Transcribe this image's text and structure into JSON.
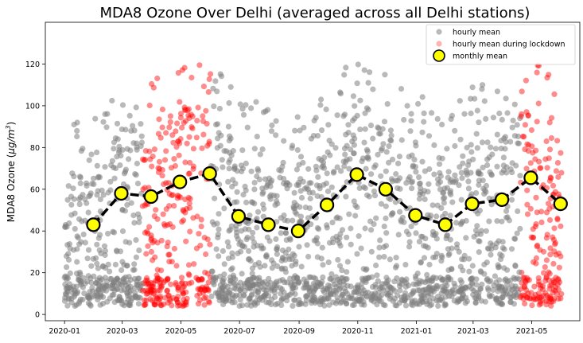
{
  "chart_data": {
    "type": "scatter",
    "title": "MDA8 Ozone Over Delhi (averaged across all Delhi stations)",
    "xlabel": "",
    "ylabel": "MDA8 Ozone (μg/m³)",
    "ylabel_main": "MDA8 Ozone (",
    "ylabel_unit_mu": "μg/m",
    "ylabel_unit_exp": "3",
    "ylabel_close": ")",
    "x_range": [
      "2019-12-12",
      "2021-06-20"
    ],
    "ylim": [
      -3,
      140
    ],
    "x_ticks": [
      "2020-01",
      "2020-03",
      "2020-05",
      "2020-07",
      "2020-09",
      "2020-11",
      "2021-01",
      "2021-03",
      "2021-05"
    ],
    "y_ticks": [
      0,
      20,
      40,
      60,
      80,
      100,
      120
    ],
    "legend": {
      "placement": "top-right",
      "entries": [
        "hourly mean",
        "hourly mean during lockdown",
        "monthly mean"
      ]
    },
    "colors": {
      "hourly": "#808080",
      "lockdown": "#ff0000",
      "monthly_fill": "#ffff00",
      "monthly_line": "#000000"
    },
    "lockdown_periods": [
      [
        "2020-03-22",
        "2020-06-01"
      ],
      [
        "2021-04-19",
        "2021-06-15"
      ]
    ],
    "series": [
      {
        "name": "monthly mean",
        "type": "line",
        "points": [
          {
            "x": "2020-01-31",
            "y": 43
          },
          {
            "x": "2020-02-29",
            "y": 58
          },
          {
            "x": "2020-03-31",
            "y": 56.5
          },
          {
            "x": "2020-04-30",
            "y": 63.5
          },
          {
            "x": "2020-05-31",
            "y": 67.5
          },
          {
            "x": "2020-06-30",
            "y": 47
          },
          {
            "x": "2020-07-31",
            "y": 43
          },
          {
            "x": "2020-08-31",
            "y": 40
          },
          {
            "x": "2020-09-30",
            "y": 52.5
          },
          {
            "x": "2020-10-31",
            "y": 67
          },
          {
            "x": "2020-11-30",
            "y": 60
          },
          {
            "x": "2020-12-31",
            "y": 47.5
          },
          {
            "x": "2021-01-31",
            "y": 43
          },
          {
            "x": "2021-02-28",
            "y": 53
          },
          {
            "x": "2021-03-31",
            "y": 55
          },
          {
            "x": "2021-04-30",
            "y": 65.5
          },
          {
            "x": "2021-05-31",
            "y": 53
          }
        ]
      }
    ]
  }
}
